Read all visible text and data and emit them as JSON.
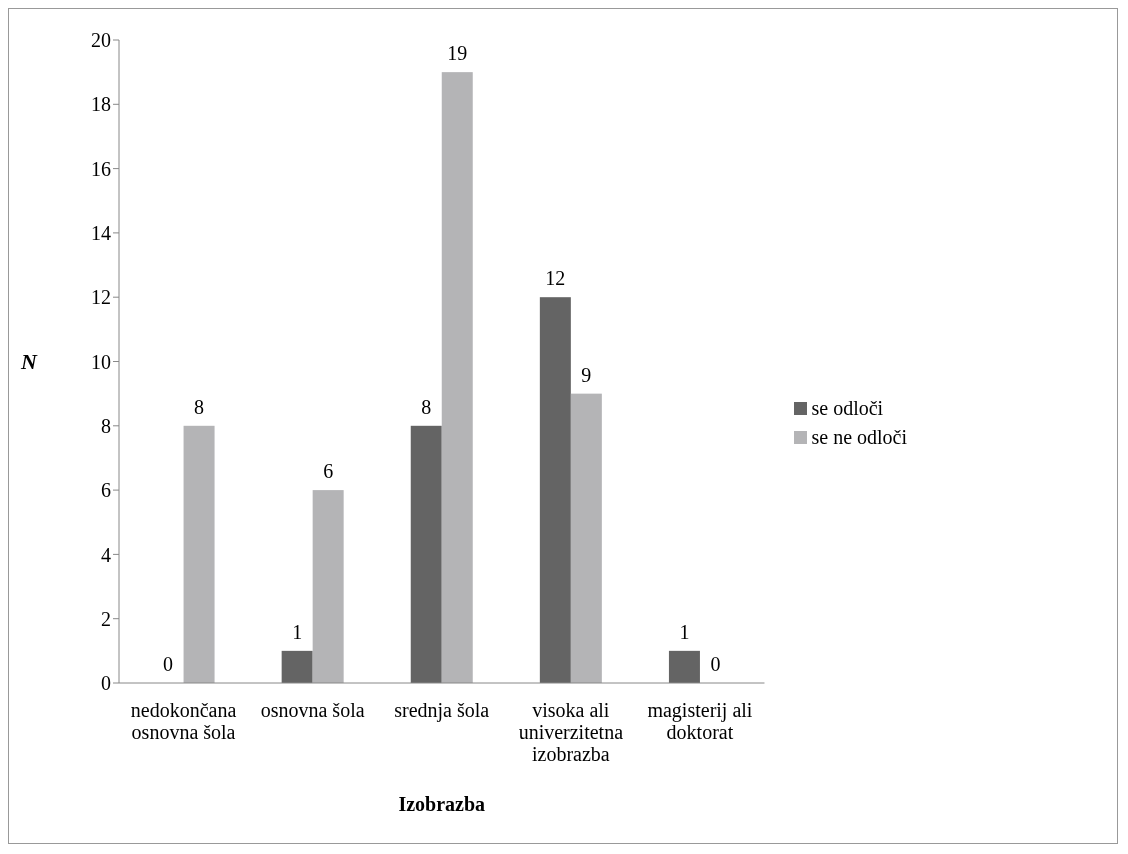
{
  "chart_data": {
    "type": "bar",
    "xlabel": "Izobrazba",
    "ylabel": "N",
    "categories": [
      "nedokončana osnovna šola",
      "osnovna šola",
      "srednja šola",
      "visoka ali univerzitetna izobrazba",
      "magisterij ali doktorat"
    ],
    "series": [
      {
        "name": "se odloči",
        "color": "#646464",
        "values": [
          0,
          1,
          8,
          12,
          1
        ]
      },
      {
        "name": "se ne odloči",
        "color": "#b4b4b6",
        "values": [
          8,
          6,
          19,
          9,
          0
        ]
      }
    ],
    "ylim": [
      0,
      20
    ],
    "yticks": [
      0,
      2,
      4,
      6,
      8,
      10,
      12,
      14,
      16,
      18,
      20
    ],
    "grid": false,
    "legend": "right",
    "data_labels": true
  }
}
